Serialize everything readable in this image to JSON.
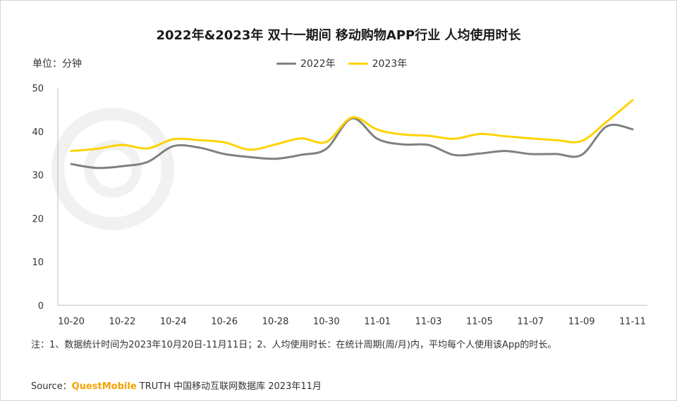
{
  "chart_data": {
    "type": "line",
    "title": "2022年&2023年 双十一期间 移动购物APP行业 人均使用时长",
    "unit_label": "单位：分钟",
    "ylim": [
      0,
      50
    ],
    "yticks": [
      "0",
      "10",
      "20",
      "30",
      "40",
      "50"
    ],
    "x_tick_labels": [
      "10-20",
      "10-22",
      "10-24",
      "10-26",
      "10-28",
      "10-30",
      "11-01",
      "11-03",
      "11-05",
      "11-07",
      "11-09",
      "11-11"
    ],
    "legend_position": "top-center",
    "grid": false,
    "series": [
      {
        "name": "2022年",
        "color": "#808080",
        "values": [
          32.5,
          31.6,
          32.0,
          33.0,
          36.6,
          36.3,
          34.8,
          34.1,
          33.7,
          34.6,
          36.0,
          43.0,
          38.3,
          37.0,
          36.9,
          34.6,
          34.9,
          35.5,
          34.8,
          34.8,
          34.6,
          41.2,
          40.5
        ]
      },
      {
        "name": "2023年",
        "color": "#ffd200",
        "values": [
          35.5,
          36.0,
          36.9,
          36.1,
          38.2,
          38.0,
          37.5,
          35.8,
          37.0,
          38.4,
          37.6,
          43.2,
          40.4,
          39.3,
          39.0,
          38.3,
          39.4,
          38.9,
          38.4,
          38.0,
          37.8,
          42.3,
          47.2
        ]
      }
    ]
  },
  "watermark": "QUEST MOBILE",
  "note": "注：1、数据统计时间为2023年10月20日-11月11日；2、人均使用时长：在统计周期(周/月)内，平均每个人使用该App的时长。",
  "source": {
    "prefix": "Source：",
    "brand": "QuestMobile",
    "suffix": "TRUTH 中国移动互联网数据库 2023年11月"
  }
}
